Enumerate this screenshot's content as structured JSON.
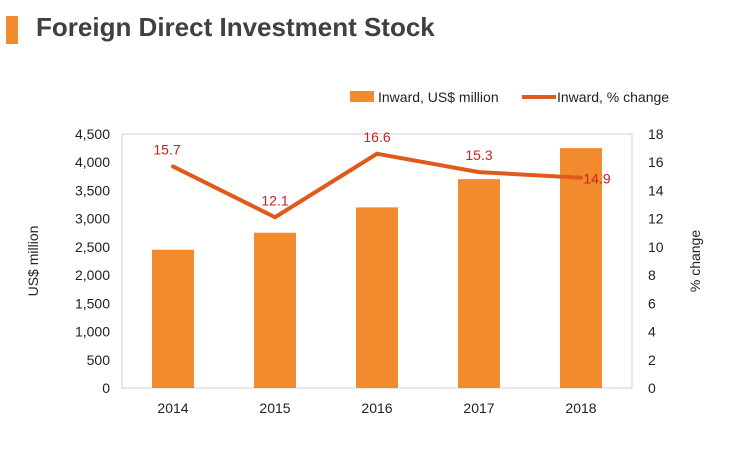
{
  "header": {
    "title": "Foreign Direct Investment Stock",
    "accent_color": "#f28a2e"
  },
  "chart_data": {
    "type": "bar",
    "categories": [
      "2014",
      "2015",
      "2016",
      "2017",
      "2018"
    ],
    "series": [
      {
        "name": "Inward, US$ million",
        "kind": "bar",
        "axis": "left",
        "color": "#f28a2e",
        "values": [
          2450,
          2750,
          3200,
          3700,
          4250
        ]
      },
      {
        "name": "Inward, % change",
        "kind": "line",
        "axis": "right",
        "color": "#e05a1b",
        "label_color": "#cc1f1f",
        "values": [
          15.7,
          12.1,
          16.6,
          15.3,
          14.9
        ]
      }
    ],
    "ylabel": "US$ million",
    "y2label": "% change",
    "ylim": [
      0,
      4500
    ],
    "y2lim": [
      0,
      18
    ],
    "yticks": [
      "0",
      "500",
      "1,000",
      "1,500",
      "2,000",
      "2,500",
      "3,000",
      "3,500",
      "4,000",
      "4,500"
    ],
    "y2ticks": [
      "0",
      "2",
      "4",
      "6",
      "8",
      "10",
      "12",
      "14",
      "16",
      "18"
    ],
    "legend": "top-right",
    "grid": false
  }
}
